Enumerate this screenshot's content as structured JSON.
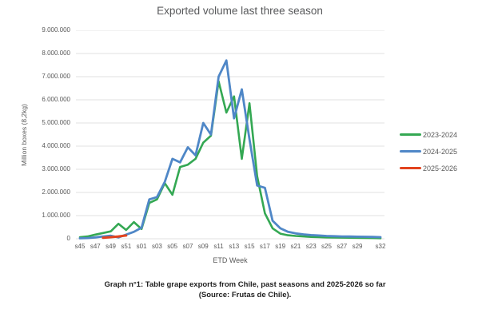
{
  "caption": {
    "line1": "Graph n°1: Table grape exports from Chile, past seasons and 2025-2026 so far",
    "line2": "(Source: Frutas de Chile)."
  },
  "chart_data": {
    "type": "line",
    "title": "Exported volume last three season",
    "xlabel": "ETD Week",
    "ylabel": "Million boxes (8,2kg)",
    "ylim": [
      0,
      9000000
    ],
    "grid": "horizontal",
    "legend_position": "right",
    "categories": [
      "s45",
      "s46",
      "s47",
      "s48",
      "s49",
      "s50",
      "s51",
      "s52",
      "s01",
      "s02",
      "s03",
      "s04",
      "s05",
      "s06",
      "s07",
      "s08",
      "s09",
      "s10",
      "s11",
      "s12",
      "s13",
      "s14",
      "s15",
      "s16",
      "s17",
      "s18",
      "s19",
      "s20",
      "s21",
      "s22",
      "s23",
      "s24",
      "s25",
      "s26",
      "s27",
      "s28",
      "s29",
      "s30",
      "s31",
      "s32"
    ],
    "x_tick_labels": [
      "s45",
      "s47",
      "s49",
      "s51",
      "s01",
      "s03",
      "s05",
      "s07",
      "s09",
      "s11",
      "s13",
      "s15",
      "s17",
      "s19",
      "s21",
      "s23",
      "s25",
      "s27",
      "s29",
      "s32"
    ],
    "y_ticks": [
      {
        "value": 0,
        "label": "0"
      },
      {
        "value": 1000000,
        "label": "1.000.000"
      },
      {
        "value": 2000000,
        "label": "2.000.000"
      },
      {
        "value": 3000000,
        "label": "3.000.000"
      },
      {
        "value": 4000000,
        "label": "4.000.000"
      },
      {
        "value": 5000000,
        "label": "5.000.000"
      },
      {
        "value": 6000000,
        "label": "6.000.000"
      },
      {
        "value": 7000000,
        "label": "7.000.000"
      },
      {
        "value": 8000000,
        "label": "8.000.000"
      },
      {
        "value": 9000000,
        "label": "9.000.000"
      }
    ],
    "series": [
      {
        "name": "2023-2024",
        "color": "#34a853",
        "width": 2.6,
        "values": [
          70000,
          100000,
          180000,
          250000,
          320000,
          650000,
          380000,
          720000,
          420000,
          1550000,
          1700000,
          2400000,
          1900000,
          3100000,
          3200000,
          3450000,
          4150000,
          4450000,
          6800000,
          5450000,
          6150000,
          3450000,
          5850000,
          2700000,
          1100000,
          450000,
          220000,
          150000,
          120000,
          100000,
          80000,
          70000,
          60000,
          55000,
          50000,
          45000,
          40000,
          35000,
          30000,
          25000
        ]
      },
      {
        "name": "2024-2025",
        "color": "#4f87c7",
        "width": 2.8,
        "values": [
          20000,
          30000,
          60000,
          100000,
          130000,
          60000,
          180000,
          300000,
          480000,
          1700000,
          1800000,
          2450000,
          3450000,
          3300000,
          3950000,
          3600000,
          5000000,
          4500000,
          7000000,
          7700000,
          5200000,
          6450000,
          4300000,
          2300000,
          2200000,
          780000,
          450000,
          300000,
          230000,
          190000,
          160000,
          140000,
          120000,
          110000,
          100000,
          95000,
          90000,
          85000,
          80000,
          70000
        ]
      },
      {
        "name": "2025-2026",
        "color": "#e2431e",
        "width": 3,
        "values": [
          null,
          null,
          null,
          40000,
          70000,
          100000,
          140000,
          null,
          null,
          null,
          null,
          null,
          null,
          null,
          null,
          null,
          null,
          null,
          null,
          null,
          null,
          null,
          null,
          null,
          null,
          null,
          null,
          null,
          null,
          null,
          null,
          null,
          null,
          null,
          null,
          null,
          null,
          null,
          null,
          null
        ]
      }
    ]
  }
}
